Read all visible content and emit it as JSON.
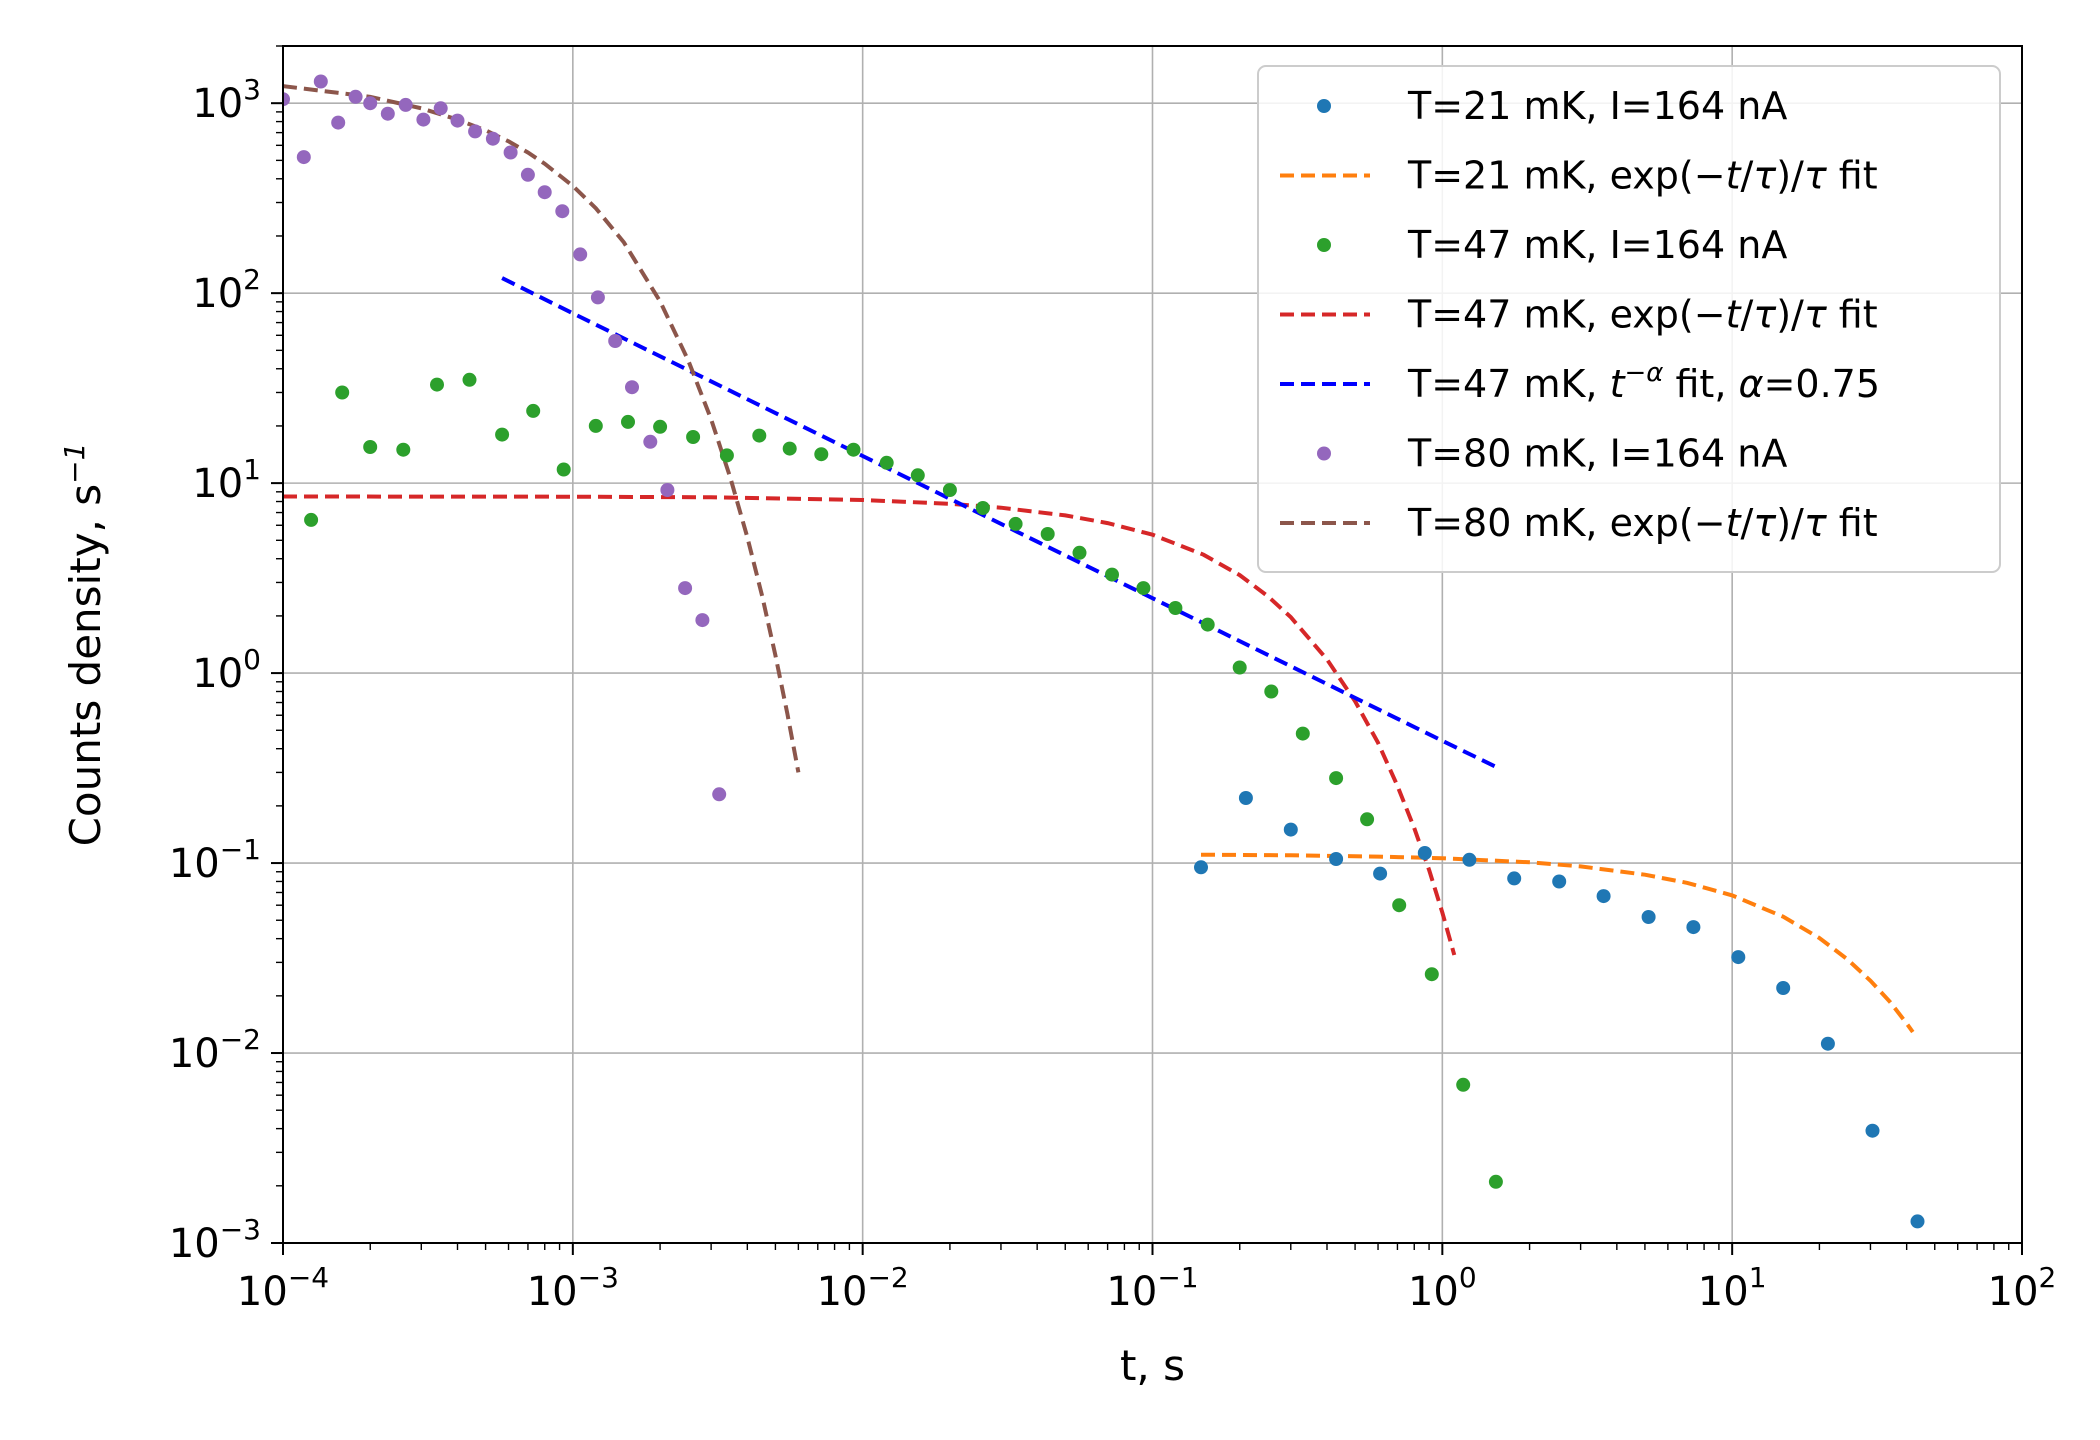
{
  "chart_data": {
    "type": "scatter",
    "title": "",
    "xlabel": "t, s",
    "ylabel": "Counts density, s",
    "ylabel_sup": "−1",
    "xscale": "log",
    "yscale": "log",
    "xlim": [
      0.0001,
      100
    ],
    "ylim": [
      0.001,
      2000
    ],
    "grid": true,
    "legend_position": "top-right",
    "x_ticks": [
      {
        "value": 0.0001,
        "base": "10",
        "exp": "−4"
      },
      {
        "value": 0.001,
        "base": "10",
        "exp": "−3"
      },
      {
        "value": 0.01,
        "base": "10",
        "exp": "−2"
      },
      {
        "value": 0.1,
        "base": "10",
        "exp": "−1"
      },
      {
        "value": 1,
        "base": "10",
        "exp": "0"
      },
      {
        "value": 10,
        "base": "10",
        "exp": "1"
      },
      {
        "value": 100,
        "base": "10",
        "exp": "2"
      }
    ],
    "y_ticks": [
      {
        "value": 0.001,
        "base": "10",
        "exp": "−3"
      },
      {
        "value": 0.01,
        "base": "10",
        "exp": "−2"
      },
      {
        "value": 0.1,
        "base": "10",
        "exp": "−1"
      },
      {
        "value": 1,
        "base": "10",
        "exp": "0"
      },
      {
        "value": 10,
        "base": "10",
        "exp": "1"
      },
      {
        "value": 100,
        "base": "10",
        "exp": "2"
      },
      {
        "value": 1000,
        "base": "10",
        "exp": "3"
      }
    ],
    "series": [
      {
        "name": "T=21 mK, I=164 nA",
        "kind": "scatter",
        "color": "#1f77b4",
        "points": [
          [
            0.147,
            0.095
          ],
          [
            0.21,
            0.22
          ],
          [
            0.3,
            0.15
          ],
          [
            0.43,
            0.105
          ],
          [
            0.61,
            0.088
          ],
          [
            0.87,
            0.113
          ],
          [
            1.24,
            0.104
          ],
          [
            1.77,
            0.083
          ],
          [
            2.53,
            0.08
          ],
          [
            3.6,
            0.067
          ],
          [
            5.15,
            0.052
          ],
          [
            7.35,
            0.046
          ],
          [
            10.5,
            0.032
          ],
          [
            15,
            0.022
          ],
          [
            21.4,
            0.0112
          ],
          [
            30.5,
            0.0039
          ],
          [
            43.6,
            0.0013
          ]
        ]
      },
      {
        "name": "T=21 mK, exp(−t/τ)/τ fit",
        "kind": "line",
        "color": "#ff7f0e",
        "points": [
          [
            0.147,
            0.1107
          ],
          [
            0.3,
            0.1098
          ],
          [
            0.6,
            0.1082
          ],
          [
            1,
            0.1061
          ],
          [
            2,
            0.1009
          ],
          [
            3,
            0.096
          ],
          [
            5,
            0.0868
          ],
          [
            7,
            0.0786
          ],
          [
            10,
            0.0676
          ],
          [
            15,
            0.0522
          ],
          [
            20,
            0.0403
          ],
          [
            25,
            0.0311
          ],
          [
            30,
            0.024
          ],
          [
            35,
            0.0186
          ],
          [
            40,
            0.0143
          ],
          [
            42,
            0.0129
          ]
        ]
      },
      {
        "name": "T=47 mK, I=164 nA",
        "kind": "scatter",
        "color": "#2ca02c",
        "points": [
          [
            0.000125,
            6.4
          ],
          [
            0.00016,
            30
          ],
          [
            0.0002,
            15.5
          ],
          [
            0.00026,
            15
          ],
          [
            0.00034,
            33
          ],
          [
            0.00044,
            35
          ],
          [
            0.00057,
            18
          ],
          [
            0.00073,
            24
          ],
          [
            0.00093,
            11.8
          ],
          [
            0.0012,
            20
          ],
          [
            0.00155,
            21
          ],
          [
            0.002,
            19.8
          ],
          [
            0.0026,
            17.5
          ],
          [
            0.0034,
            14
          ],
          [
            0.0044,
            17.8
          ],
          [
            0.0056,
            15.2
          ],
          [
            0.0072,
            14.2
          ],
          [
            0.0093,
            15
          ],
          [
            0.0121,
            12.8
          ],
          [
            0.0155,
            11
          ],
          [
            0.02,
            9.2
          ],
          [
            0.026,
            7.4
          ],
          [
            0.0337,
            6.1
          ],
          [
            0.0435,
            5.4
          ],
          [
            0.056,
            4.3
          ],
          [
            0.0725,
            3.3
          ],
          [
            0.093,
            2.8
          ],
          [
            0.12,
            2.2
          ],
          [
            0.155,
            1.8
          ],
          [
            0.2,
            1.07
          ],
          [
            0.257,
            0.8
          ],
          [
            0.33,
            0.48
          ],
          [
            0.43,
            0.28
          ],
          [
            0.55,
            0.17
          ],
          [
            0.71,
            0.06
          ],
          [
            0.92,
            0.026
          ],
          [
            1.18,
            0.0068
          ],
          [
            1.53,
            0.0021
          ]
        ]
      },
      {
        "name": "T=47 mK, exp(−t/τ)/τ fit",
        "kind": "line",
        "color": "#d62728",
        "points": [
          [
            0.0001,
            8.5
          ],
          [
            0.001,
            8.48
          ],
          [
            0.003,
            8.42
          ],
          [
            0.01,
            8.15
          ],
          [
            0.02,
            7.78
          ],
          [
            0.03,
            7.42
          ],
          [
            0.05,
            6.76
          ],
          [
            0.07,
            6.16
          ],
          [
            0.1,
            5.35
          ],
          [
            0.15,
            4.2
          ],
          [
            0.2,
            3.28
          ],
          [
            0.25,
            2.54
          ],
          [
            0.3,
            1.97
          ],
          [
            0.4,
            1.18
          ],
          [
            0.5,
            0.71
          ],
          [
            0.6,
            0.43
          ],
          [
            0.7,
            0.255
          ],
          [
            0.8,
            0.153
          ],
          [
            0.9,
            0.092
          ],
          [
            1.0,
            0.055
          ],
          [
            1.1,
            0.0328
          ]
        ]
      },
      {
        "name": "T=47 mK, t^−α fit, α=0.75",
        "kind": "line",
        "color": "#0000ff",
        "points": [
          [
            0.00057,
            120
          ],
          [
            0.001,
            78.3
          ],
          [
            0.01,
            13.9
          ],
          [
            0.1,
            2.48
          ],
          [
            1,
            0.44
          ],
          [
            1.55,
            0.318
          ]
        ]
      },
      {
        "name": "T=80 mK, I=164 nA",
        "kind": "scatter",
        "color": "#9467bd",
        "points": [
          [
            0.0001,
            1050
          ],
          [
            0.000118,
            520
          ],
          [
            0.000135,
            1300
          ],
          [
            0.000155,
            790
          ],
          [
            0.000178,
            1080
          ],
          [
            0.0002,
            1000
          ],
          [
            0.00023,
            880
          ],
          [
            0.000265,
            980
          ],
          [
            0.000305,
            820
          ],
          [
            0.00035,
            940
          ],
          [
            0.0004,
            810
          ],
          [
            0.00046,
            710
          ],
          [
            0.00053,
            650
          ],
          [
            0.00061,
            550
          ],
          [
            0.0007,
            420
          ],
          [
            0.0008,
            340
          ],
          [
            0.00092,
            270
          ],
          [
            0.00106,
            160
          ],
          [
            0.00122,
            95
          ],
          [
            0.0014,
            56
          ],
          [
            0.0016,
            32
          ],
          [
            0.00185,
            16.5
          ],
          [
            0.00212,
            9.2
          ],
          [
            0.00244,
            2.8
          ],
          [
            0.0028,
            1.9
          ],
          [
            0.0032,
            0.23
          ]
        ]
      },
      {
        "name": "T=80 mK, exp(−t/τ)/τ fit",
        "kind": "line",
        "color": "#8c564b",
        "points": [
          [
            0.0001,
            1230
          ],
          [
            0.0002,
            1080
          ],
          [
            0.0003,
            940
          ],
          [
            0.0004,
            820
          ],
          [
            0.0005,
            720
          ],
          [
            0.0006,
            630
          ],
          [
            0.0007,
            550
          ],
          [
            0.0008,
            480
          ],
          [
            0.001,
            367
          ],
          [
            0.0012,
            280
          ],
          [
            0.0015,
            185
          ],
          [
            0.002,
            90.5
          ],
          [
            0.0025,
            44.3
          ],
          [
            0.003,
            21.7
          ],
          [
            0.0035,
            10.6
          ],
          [
            0.004,
            5.2
          ],
          [
            0.0045,
            2.54
          ],
          [
            0.005,
            1.24
          ],
          [
            0.0055,
            0.61
          ],
          [
            0.006,
            0.3
          ]
        ]
      }
    ]
  },
  "legend": {
    "entries": [
      {
        "kind": "marker",
        "color": "#1f77b4",
        "parts": [
          [
            "T=21 mK, I=164 nA",
            "n"
          ]
        ]
      },
      {
        "kind": "line",
        "color": "#ff7f0e",
        "parts": [
          [
            "T=21 mK, exp(−",
            "n"
          ],
          [
            "t",
            "i"
          ],
          [
            "/",
            "n"
          ],
          [
            "τ",
            "i"
          ],
          [
            ")/",
            "n"
          ],
          [
            "τ",
            "i"
          ],
          [
            " fit",
            "n"
          ]
        ]
      },
      {
        "kind": "marker",
        "color": "#2ca02c",
        "parts": [
          [
            "T=47 mK, I=164 nA",
            "n"
          ]
        ]
      },
      {
        "kind": "line",
        "color": "#d62728",
        "parts": [
          [
            "T=47 mK, exp(−",
            "n"
          ],
          [
            "t",
            "i"
          ],
          [
            "/",
            "n"
          ],
          [
            "τ",
            "i"
          ],
          [
            ")/",
            "n"
          ],
          [
            "τ",
            "i"
          ],
          [
            " fit",
            "n"
          ]
        ]
      },
      {
        "kind": "line",
        "color": "#0000ff",
        "parts": [
          [
            "T=47 mK, ",
            "n"
          ],
          [
            "t",
            "i"
          ],
          [
            "−α",
            "s"
          ],
          [
            " fit, ",
            "n"
          ],
          [
            "α",
            "i"
          ],
          [
            "=0.75",
            "n"
          ]
        ]
      },
      {
        "kind": "marker",
        "color": "#9467bd",
        "parts": [
          [
            "T=80 mK, I=164 nA",
            "n"
          ]
        ]
      },
      {
        "kind": "line",
        "color": "#8c564b",
        "parts": [
          [
            "T=80 mK, exp(−",
            "n"
          ],
          [
            "t",
            "i"
          ],
          [
            "/",
            "n"
          ],
          [
            "τ",
            "i"
          ],
          [
            ")/",
            "n"
          ],
          [
            "τ",
            "i"
          ],
          [
            " fit",
            "n"
          ]
        ]
      }
    ]
  }
}
